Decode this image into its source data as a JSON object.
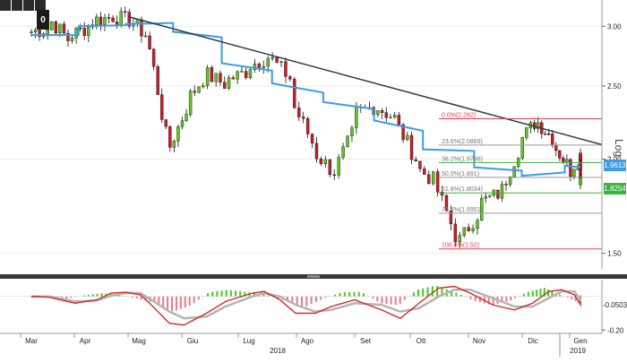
{
  "toolbar": {
    "icons": [
      "pencil-icon",
      "draw-line-icon",
      "cursor-icon",
      "expand-icon"
    ],
    "badge": "0"
  },
  "colors": {
    "bg": "#ffffff",
    "up": "#5fc81e",
    "down": "#c81e28",
    "ma": "#3c9beb",
    "trend": "#2d3c46",
    "fib": "#e63c50",
    "fibGreen": "#3cb43c",
    "fibGrey": "#9a9a9a",
    "oscFast": "#d42a2a",
    "oscSlow": "#b4b4b4"
  },
  "chart_data": [
    {
      "type": "candlestick",
      "y_scale": "log",
      "ylim": [
        1.43,
        3.18
      ],
      "y_ticks": [
        "3.00",
        "2.50",
        "2.00",
        "1.50"
      ],
      "axis_label": "Log",
      "x_ticks": [
        "Mar",
        "Apr",
        "Mag",
        "Giu",
        "Lug",
        "Ago",
        "Set",
        "Ott",
        "Nov",
        "Dic",
        "Gen"
      ],
      "x_years": [
        "2018",
        "2019"
      ],
      "price_path": [
        [
          2.95,
          2.95
        ],
        [
          2.98,
          3.05
        ],
        [
          2.86,
          2.92
        ],
        [
          3.0,
          3.05
        ],
        [
          3.08,
          3.1
        ],
        [
          3.05,
          3.06
        ],
        [
          2.9,
          2.83
        ],
        [
          2.05,
          2.05
        ],
        [
          2.35,
          2.4
        ],
        [
          2.6,
          2.58
        ],
        [
          2.5,
          2.55
        ],
        [
          2.62,
          2.66
        ],
        [
          2.74,
          2.72
        ],
        [
          2.55,
          2.38
        ],
        [
          2.1,
          2.05
        ],
        [
          1.92,
          1.92
        ],
        [
          2.2,
          2.3
        ],
        [
          2.35,
          2.35
        ],
        [
          2.26,
          2.23
        ],
        [
          2.0,
          1.95
        ],
        [
          1.86,
          1.82
        ],
        [
          1.55,
          1.55
        ],
        [
          1.7,
          1.75
        ],
        [
          1.8,
          1.78
        ],
        [
          2.05,
          2.1
        ],
        [
          2.26,
          2.24
        ],
        [
          2.12,
          2.08
        ],
        [
          1.92,
          1.96
        ],
        [
          2.05,
          2.05
        ],
        [
          1.86,
          1.86
        ]
      ],
      "moving_average": [
        [
          2.92,
          2.92
        ],
        [
          3.0,
          3.01
        ],
        [
          3.02,
          3.03
        ],
        [
          2.95,
          2.9
        ],
        [
          2.68,
          2.62
        ],
        [
          2.52,
          2.45
        ],
        [
          2.38,
          2.33
        ],
        [
          2.25,
          2.18
        ],
        [
          2.06,
          2.05
        ],
        [
          1.95,
          1.93
        ],
        [
          1.9,
          1.92
        ],
        [
          1.96,
          1.95
        ]
      ],
      "trendline": {
        "from": [
          "Apr",
          3.09
        ],
        "to": [
          "Gen",
          2.09
        ]
      },
      "fibonacci": [
        {
          "label": "0.0%(2.262)",
          "value": 2.262,
          "color": "red"
        },
        {
          "label": "23.6%(2.0869)",
          "value": 2.0869,
          "color": "grey"
        },
        {
          "label": "38.2%(1.9786)",
          "value": 1.9786,
          "color": "green"
        },
        {
          "label": "50.0%(1.891)",
          "value": 1.891,
          "color": "grey"
        },
        {
          "label": "61.8%(1.8034)",
          "value": 1.8034,
          "color": "green"
        },
        {
          "label": "76.4%(1.6951)",
          "value": 1.6951,
          "color": "grey"
        },
        {
          "label": "100.0%(1.52)",
          "value": 1.52,
          "color": "red"
        }
      ],
      "last_values": [
        {
          "label": "1.9613",
          "value": 1.9613,
          "color": "blue"
        },
        {
          "label": "1.8254",
          "value": 1.8254,
          "color": "green"
        }
      ]
    },
    {
      "type": "oscillator",
      "ylim": [
        -0.22,
        0.1
      ],
      "y_ticks": [
        "-0.20"
      ],
      "last_value": "-0.0503",
      "series": [
        {
          "key": "fast",
          "values": [
            [
              0,
              0
            ],
            [
              0.5,
              -0.005
            ],
            [
              1.2,
              -0.04
            ],
            [
              1.8,
              -0.02
            ],
            [
              2.2,
              0.02
            ],
            [
              2.6,
              0.025
            ],
            [
              3.0,
              0.01
            ],
            [
              3.3,
              -0.05
            ],
            [
              3.8,
              -0.16
            ],
            [
              4.2,
              -0.17
            ],
            [
              4.8,
              -0.1
            ],
            [
              5.3,
              -0.03
            ],
            [
              6.0,
              0.02
            ],
            [
              6.3,
              0.03
            ],
            [
              6.7,
              -0.02
            ],
            [
              7.1,
              -0.1
            ],
            [
              7.6,
              -0.1
            ],
            [
              8.0,
              -0.06
            ],
            [
              8.6,
              -0.02
            ],
            [
              9.3,
              -0.08
            ],
            [
              9.8,
              -0.13
            ],
            [
              10.3,
              -0.04
            ],
            [
              10.8,
              0.05
            ],
            [
              11.2,
              0.06
            ],
            [
              11.6,
              0.02
            ],
            [
              12.2,
              -0.05
            ],
            [
              12.8,
              -0.08
            ],
            [
              13.3,
              -0.04
            ],
            [
              13.8,
              0.03
            ],
            [
              14.2,
              0.04
            ],
            [
              14.6,
              0.01
            ],
            [
              15.2,
              -0.05
            ],
            [
              15.6,
              -0.03
            ]
          ]
        },
        {
          "key": "slow",
          "values": [
            [
              0,
              0
            ],
            [
              0.5,
              0
            ],
            [
              1.2,
              -0.03
            ],
            [
              1.8,
              -0.025
            ],
            [
              2.2,
              0.005
            ],
            [
              2.6,
              0.02
            ],
            [
              3.0,
              0.02
            ],
            [
              3.3,
              -0.02
            ],
            [
              3.8,
              -0.09
            ],
            [
              4.2,
              -0.13
            ],
            [
              4.8,
              -0.12
            ],
            [
              5.3,
              -0.06
            ],
            [
              6.0,
              0.0
            ],
            [
              6.3,
              0.02
            ],
            [
              6.7,
              0.0
            ],
            [
              7.1,
              -0.05
            ],
            [
              7.6,
              -0.09
            ],
            [
              8.0,
              -0.08
            ],
            [
              8.6,
              -0.04
            ],
            [
              9.3,
              -0.05
            ],
            [
              9.8,
              -0.09
            ],
            [
              10.3,
              -0.07
            ],
            [
              10.8,
              0.0
            ],
            [
              11.2,
              0.04
            ],
            [
              11.6,
              0.04
            ],
            [
              12.2,
              -0.01
            ],
            [
              12.8,
              -0.06
            ],
            [
              13.3,
              -0.06
            ],
            [
              13.8,
              -0.01
            ],
            [
              14.2,
              0.03
            ],
            [
              14.6,
              0.03
            ],
            [
              15.2,
              -0.02
            ],
            [
              15.6,
              -0.035
            ]
          ]
        }
      ]
    }
  ]
}
